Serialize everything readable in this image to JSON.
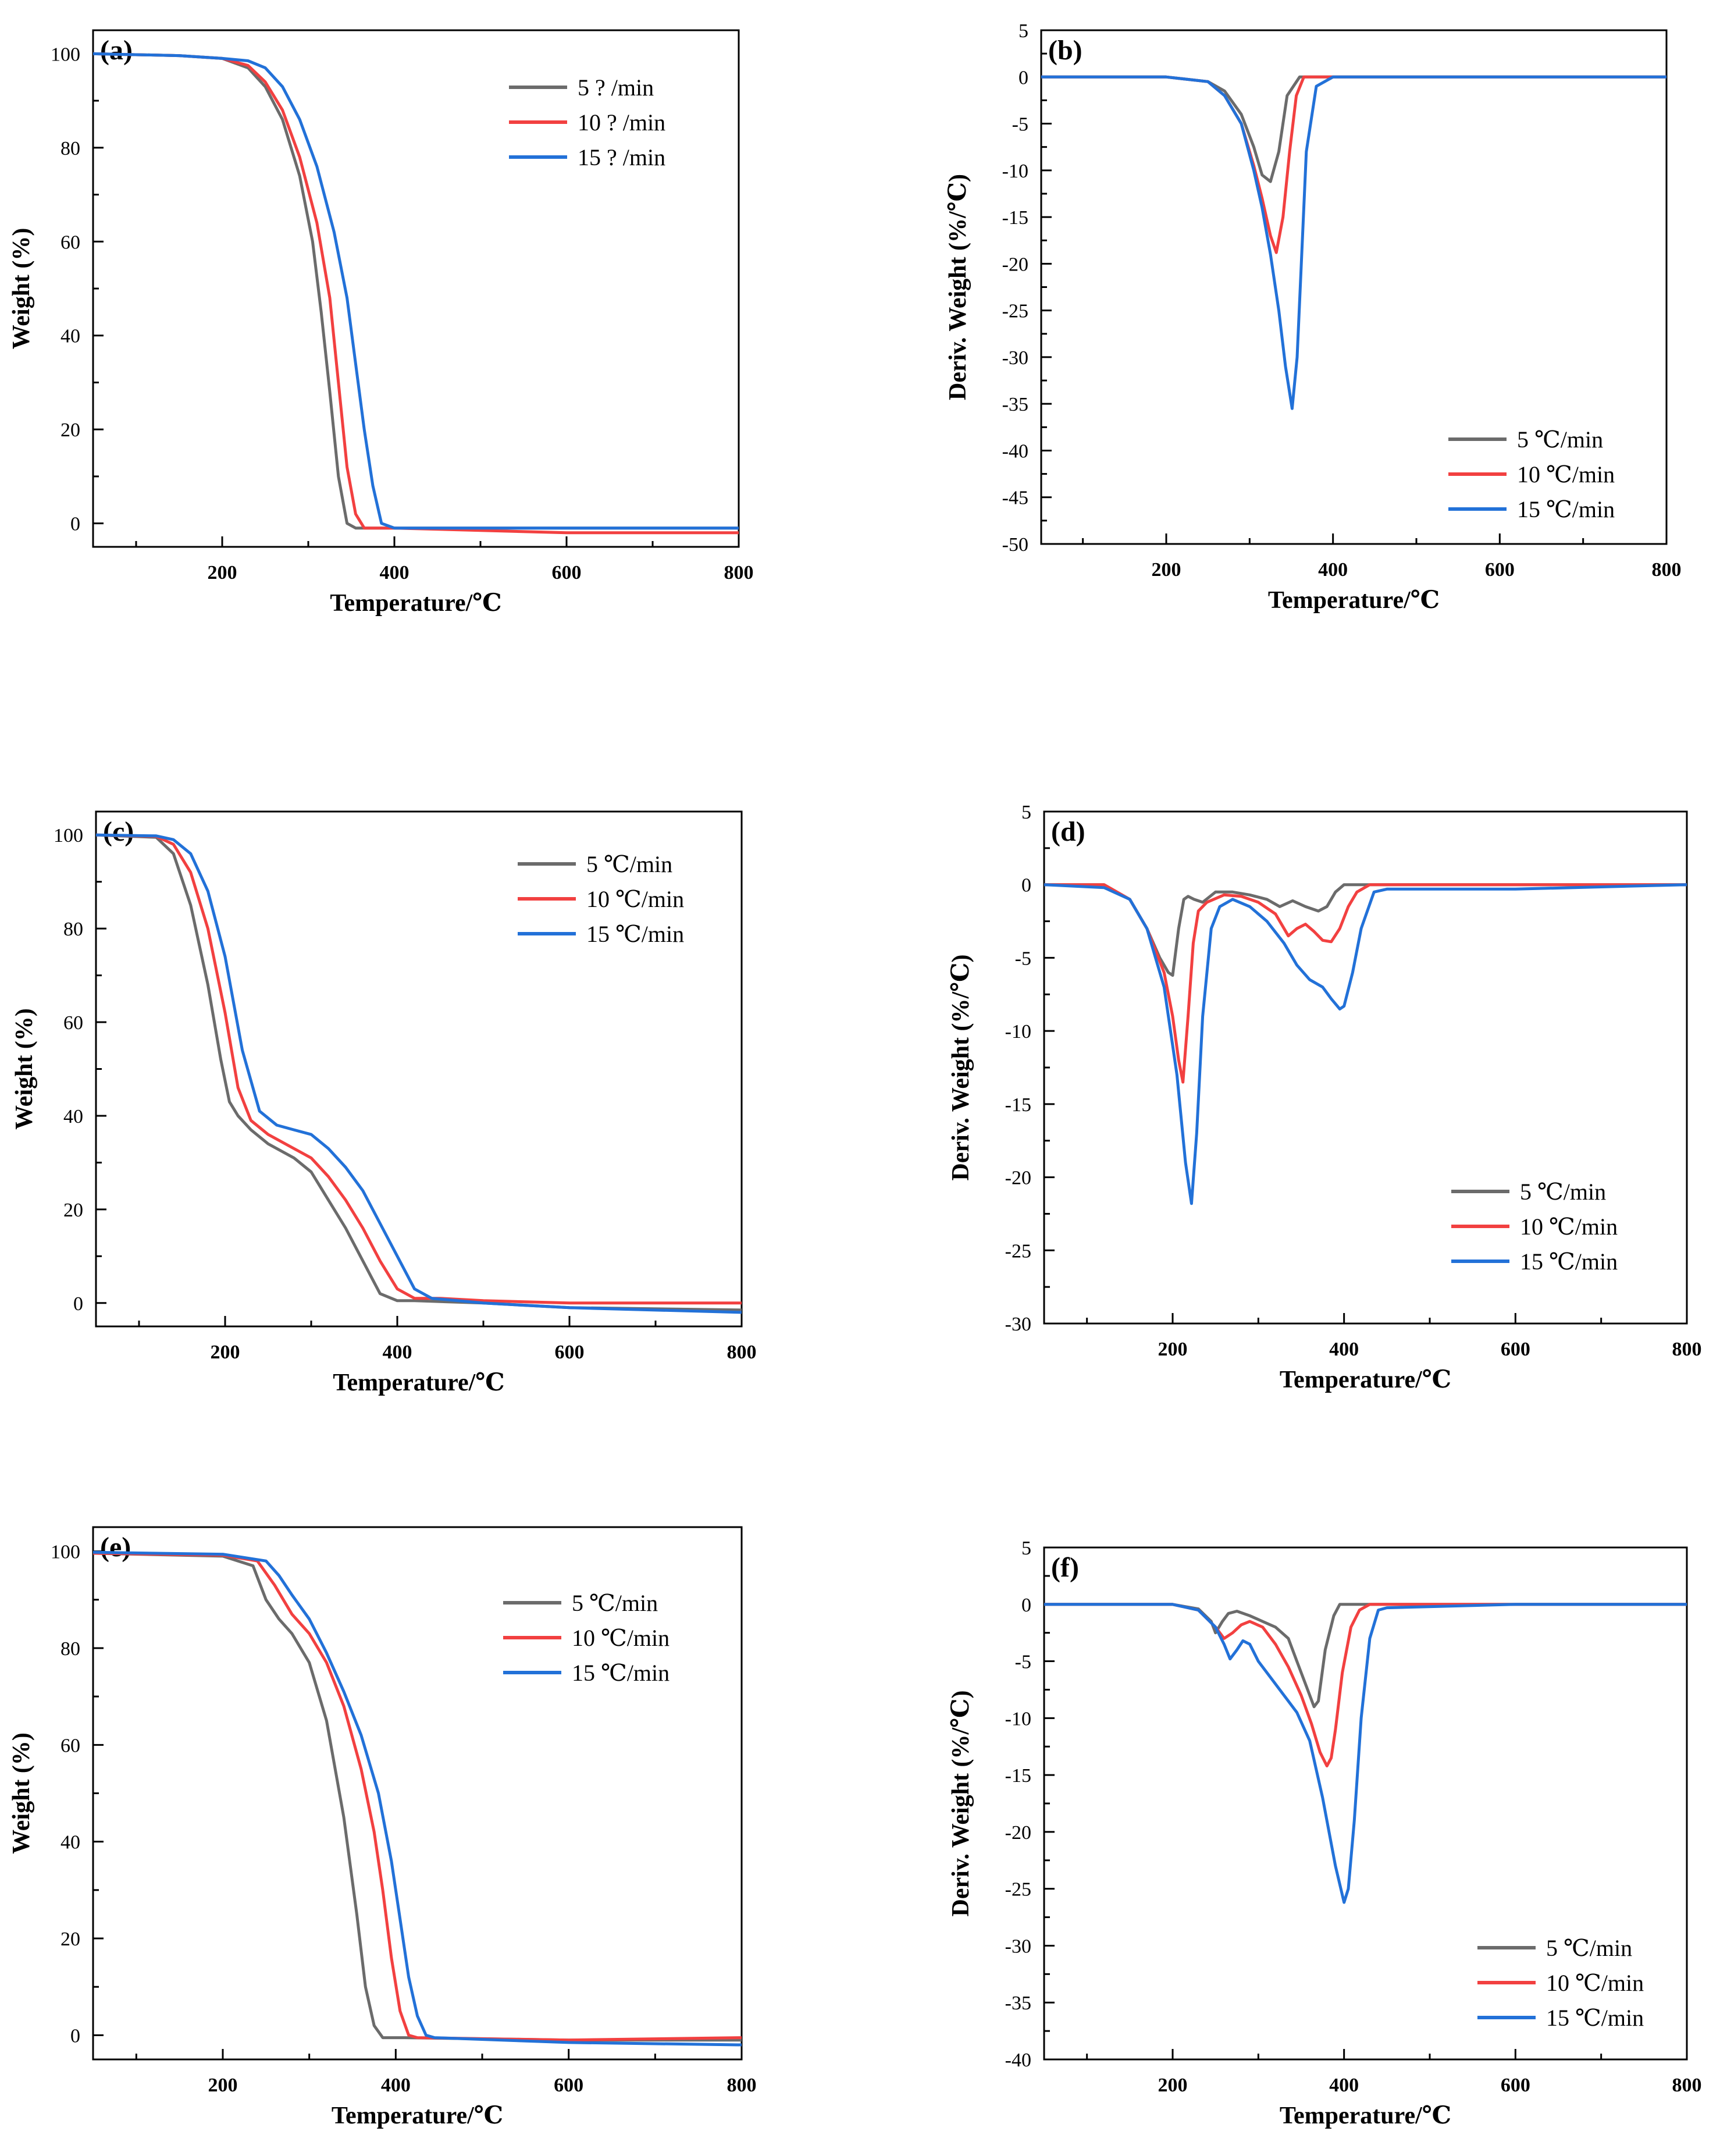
{
  "figure": {
    "description_free": true
  },
  "chart_data": [
    {
      "panel": "(a)",
      "type": "line",
      "xlabel": "Temperature/℃",
      "ylabel": "Weight (%)",
      "xlim": [
        50,
        800
      ],
      "ylim": [
        -5,
        105
      ],
      "xticks": [
        200,
        400,
        600,
        800
      ],
      "yticks": [
        0,
        20,
        40,
        60,
        80,
        100
      ],
      "legend_position": "top-right",
      "series": [
        {
          "name": "5 ?  /min",
          "color": "#6b6b6b",
          "x": [
            50,
            150,
            200,
            230,
            250,
            270,
            290,
            305,
            315,
            325,
            335,
            345,
            355,
            400,
            600,
            800
          ],
          "y": [
            100,
            99.6,
            99,
            97,
            93,
            86,
            74,
            60,
            45,
            28,
            10,
            0,
            -1,
            -1,
            -1,
            -1
          ]
        },
        {
          "name": "10 ?  /min",
          "color": "#f24040",
          "x": [
            50,
            150,
            200,
            230,
            250,
            270,
            290,
            310,
            325,
            335,
            345,
            355,
            365,
            400,
            600,
            800
          ],
          "y": [
            100,
            99.6,
            99,
            97.5,
            94,
            88,
            78,
            64,
            48,
            30,
            12,
            2,
            -1,
            -1,
            -2,
            -2
          ]
        },
        {
          "name": "15 ?  /min",
          "color": "#2271d8",
          "x": [
            50,
            150,
            200,
            230,
            250,
            270,
            290,
            310,
            330,
            345,
            355,
            365,
            375,
            385,
            400,
            600,
            800
          ],
          "y": [
            100,
            99.6,
            99,
            98.5,
            97,
            93,
            86,
            76,
            62,
            48,
            34,
            20,
            8,
            0,
            -1,
            -1,
            -1
          ]
        }
      ]
    },
    {
      "panel": "(b)",
      "type": "line",
      "xlabel": "Temperature/℃",
      "ylabel": "Deriv. Weight (%/℃)",
      "xlim": [
        50,
        800
      ],
      "ylim": [
        -50,
        5
      ],
      "xticks": [
        200,
        400,
        600,
        800
      ],
      "yticks": [
        5,
        0,
        -5,
        -10,
        -15,
        -20,
        -25,
        -30,
        -35,
        -40,
        -45,
        -50
      ],
      "legend_position": "bottom-right",
      "series": [
        {
          "name": "5 ℃/min",
          "color": "#6b6b6b",
          "x": [
            50,
            200,
            250,
            270,
            290,
            305,
            315,
            325,
            335,
            345,
            360,
            400,
            600,
            800
          ],
          "y": [
            0,
            0,
            -0.5,
            -1.5,
            -4,
            -7.5,
            -10.5,
            -11.2,
            -8,
            -2,
            0,
            0,
            0,
            0
          ]
        },
        {
          "name": "10 ℃/min",
          "color": "#f24040",
          "x": [
            50,
            200,
            250,
            270,
            290,
            305,
            315,
            325,
            332,
            340,
            348,
            356,
            365,
            400,
            600,
            800
          ],
          "y": [
            0,
            0,
            -0.5,
            -2,
            -5,
            -9.5,
            -13,
            -17,
            -18.8,
            -15,
            -8,
            -2,
            0,
            0,
            0,
            0
          ]
        },
        {
          "name": "15 ℃/min",
          "color": "#2271d8",
          "x": [
            50,
            200,
            250,
            270,
            290,
            305,
            315,
            325,
            335,
            343,
            351,
            357,
            362,
            368,
            380,
            400,
            600,
            800
          ],
          "y": [
            0,
            0,
            -0.5,
            -2,
            -5,
            -10,
            -14,
            -19,
            -25,
            -31,
            -35.5,
            -30,
            -20,
            -8,
            -1,
            0,
            0,
            0
          ]
        }
      ]
    },
    {
      "panel": "(c)",
      "type": "line",
      "xlabel": "Temperature/℃",
      "ylabel": "Weight (%)",
      "xlim": [
        50,
        800
      ],
      "ylim": [
        -5,
        105
      ],
      "xticks": [
        200,
        400,
        600,
        800
      ],
      "yticks": [
        0,
        20,
        40,
        60,
        80,
        100
      ],
      "legend_position": "top-right",
      "series": [
        {
          "name": "5 ℃/min",
          "color": "#6b6b6b",
          "x": [
            50,
            120,
            140,
            160,
            180,
            195,
            205,
            215,
            230,
            250,
            280,
            300,
            320,
            340,
            360,
            380,
            400,
            420,
            500,
            600,
            800
          ],
          "y": [
            100,
            99.5,
            96,
            85,
            68,
            52,
            43,
            40,
            37,
            34,
            31,
            28,
            22,
            16,
            9,
            2,
            0.5,
            0.5,
            0,
            -1,
            -1.5
          ]
        },
        {
          "name": "10 ℃/min",
          "color": "#f24040",
          "x": [
            50,
            120,
            140,
            160,
            180,
            200,
            215,
            230,
            250,
            280,
            300,
            320,
            340,
            360,
            380,
            400,
            420,
            450,
            500,
            600,
            800
          ],
          "y": [
            100,
            99.7,
            98,
            92,
            80,
            62,
            46,
            39,
            36,
            33,
            31,
            27,
            22,
            16,
            9,
            3,
            1,
            1,
            0.5,
            0,
            0
          ]
        },
        {
          "name": "15 ℃/min",
          "color": "#2271d8",
          "x": [
            50,
            120,
            140,
            160,
            180,
            200,
            220,
            240,
            260,
            280,
            300,
            320,
            340,
            360,
            380,
            400,
            420,
            440,
            500,
            600,
            800
          ],
          "y": [
            100,
            99.8,
            99,
            96,
            88,
            74,
            54,
            41,
            38,
            37,
            36,
            33,
            29,
            24,
            17,
            10,
            3,
            1,
            0,
            -1,
            -2
          ]
        }
      ]
    },
    {
      "panel": "(d)",
      "type": "line",
      "xlabel": "Temperature/℃",
      "ylabel": "Deriv. Weight (%/℃)",
      "xlim": [
        50,
        800
      ],
      "ylim": [
        -30,
        5
      ],
      "xticks": [
        200,
        400,
        600,
        800
      ],
      "yticks": [
        5,
        0,
        -5,
        -10,
        -15,
        -20,
        -25,
        -30
      ],
      "legend_position": "bottom-right",
      "series": [
        {
          "name": "5 ℃/min",
          "color": "#6b6b6b",
          "x": [
            50,
            120,
            150,
            170,
            185,
            195,
            200,
            207,
            213,
            218,
            225,
            235,
            250,
            270,
            290,
            310,
            325,
            340,
            355,
            370,
            380,
            390,
            400,
            450,
            600,
            800
          ],
          "y": [
            0,
            0,
            -1,
            -3,
            -5,
            -6,
            -6.2,
            -3,
            -1,
            -0.8,
            -1,
            -1.2,
            -0.5,
            -0.5,
            -0.7,
            -1,
            -1.5,
            -1.1,
            -1.5,
            -1.8,
            -1.5,
            -0.5,
            0,
            0,
            0,
            0
          ]
        },
        {
          "name": "10 ℃/min",
          "color": "#f24040",
          "x": [
            50,
            120,
            150,
            170,
            190,
            200,
            207,
            212,
            218,
            224,
            230,
            240,
            260,
            280,
            300,
            320,
            335,
            345,
            355,
            365,
            375,
            385,
            395,
            405,
            415,
            430,
            600,
            800
          ],
          "y": [
            0,
            0,
            -1,
            -3,
            -6,
            -9,
            -12,
            -13.5,
            -9,
            -4,
            -1.8,
            -1.2,
            -0.7,
            -0.8,
            -1.2,
            -2,
            -3.5,
            -3,
            -2.7,
            -3.2,
            -3.8,
            -3.9,
            -3,
            -1.5,
            -0.5,
            0,
            0,
            0
          ]
        },
        {
          "name": "15 ℃/min",
          "color": "#2271d8",
          "x": [
            50,
            120,
            150,
            170,
            190,
            205,
            215,
            222,
            228,
            235,
            245,
            255,
            270,
            290,
            310,
            330,
            345,
            360,
            375,
            385,
            395,
            400,
            410,
            420,
            435,
            450,
            600,
            800
          ],
          "y": [
            0,
            -0.2,
            -1,
            -3,
            -7,
            -13,
            -19,
            -21.8,
            -17,
            -9,
            -3,
            -1.5,
            -1,
            -1.5,
            -2.5,
            -4,
            -5.5,
            -6.5,
            -7,
            -7.8,
            -8.5,
            -8.3,
            -6,
            -3,
            -0.5,
            -0.3,
            -0.3,
            0
          ]
        }
      ]
    },
    {
      "panel": "(e)",
      "type": "line",
      "xlabel": "Temperature/℃",
      "ylabel": "Weight (%)",
      "xlim": [
        50,
        800
      ],
      "ylim": [
        -5,
        105
      ],
      "xticks": [
        200,
        400,
        600,
        800
      ],
      "yticks": [
        0,
        20,
        40,
        60,
        80,
        100
      ],
      "legend_position": "top-right",
      "series": [
        {
          "name": "5 ℃/min",
          "color": "#6b6b6b",
          "x": [
            50,
            200,
            235,
            250,
            265,
            280,
            300,
            320,
            340,
            355,
            365,
            375,
            385,
            395,
            410,
            600,
            800
          ],
          "y": [
            99.6,
            99,
            97,
            90,
            86,
            83,
            77,
            65,
            45,
            25,
            10,
            2,
            -0.5,
            -0.5,
            -0.5,
            -1,
            -1
          ]
        },
        {
          "name": "10 ℃/min",
          "color": "#f24040",
          "x": [
            50,
            200,
            240,
            260,
            280,
            300,
            320,
            340,
            360,
            375,
            385,
            395,
            405,
            415,
            425,
            600,
            800
          ],
          "y": [
            99.6,
            99.2,
            98,
            93,
            87,
            83,
            77,
            68,
            55,
            42,
            30,
            16,
            5,
            0,
            -0.5,
            -1,
            -0.5
          ]
        },
        {
          "name": "15 ℃/min",
          "color": "#2271d8",
          "x": [
            50,
            200,
            250,
            265,
            280,
            300,
            320,
            340,
            360,
            380,
            395,
            405,
            415,
            425,
            435,
            445,
            600,
            800
          ],
          "y": [
            99.8,
            99.4,
            98,
            95,
            91,
            86,
            79,
            71,
            62,
            50,
            36,
            24,
            12,
            4,
            0,
            -0.5,
            -1.5,
            -2
          ]
        }
      ]
    },
    {
      "panel": "(f)",
      "type": "line",
      "xlabel": "Temperature/℃",
      "ylabel": "Deriv. Weight (%/℃)",
      "xlim": [
        50,
        800
      ],
      "ylim": [
        -40,
        5
      ],
      "xticks": [
        200,
        400,
        600,
        800
      ],
      "yticks": [
        5,
        0,
        -5,
        -10,
        -15,
        -20,
        -25,
        -30,
        -35,
        -40
      ],
      "legend_position": "bottom-right",
      "series": [
        {
          "name": "5 ℃/min",
          "color": "#6b6b6b",
          "x": [
            50,
            200,
            230,
            245,
            250,
            258,
            265,
            275,
            290,
            305,
            320,
            335,
            345,
            355,
            365,
            370,
            378,
            388,
            395,
            400,
            600,
            800
          ],
          "y": [
            0,
            0,
            -0.4,
            -1.5,
            -2.5,
            -1.5,
            -0.8,
            -0.6,
            -1,
            -1.5,
            -2,
            -3,
            -5,
            -7,
            -9,
            -8.5,
            -4,
            -1,
            0,
            0,
            0,
            0
          ]
        },
        {
          "name": "10 ℃/min",
          "color": "#f24040",
          "x": [
            50,
            200,
            230,
            250,
            260,
            270,
            280,
            290,
            305,
            320,
            335,
            350,
            362,
            372,
            380,
            385,
            390,
            398,
            408,
            418,
            430,
            600,
            800
          ],
          "y": [
            0,
            0,
            -0.5,
            -2,
            -3,
            -2.5,
            -1.8,
            -1.5,
            -2,
            -3.5,
            -5.5,
            -8,
            -10.5,
            -13,
            -14.2,
            -13.5,
            -11,
            -6,
            -2,
            -0.5,
            0,
            0,
            0
          ]
        },
        {
          "name": "15 ℃/min",
          "color": "#2271d8",
          "x": [
            50,
            200,
            230,
            250,
            260,
            267,
            275,
            282,
            290,
            300,
            315,
            330,
            345,
            360,
            375,
            390,
            400,
            405,
            412,
            420,
            430,
            440,
            450,
            600,
            800
          ],
          "y": [
            0,
            0,
            -0.5,
            -2,
            -3.5,
            -4.8,
            -4,
            -3.2,
            -3.5,
            -5,
            -6.5,
            -8,
            -9.5,
            -12,
            -17,
            -23,
            -26.2,
            -25,
            -19,
            -10,
            -3,
            -0.5,
            -0.3,
            0,
            0
          ]
        }
      ]
    }
  ]
}
